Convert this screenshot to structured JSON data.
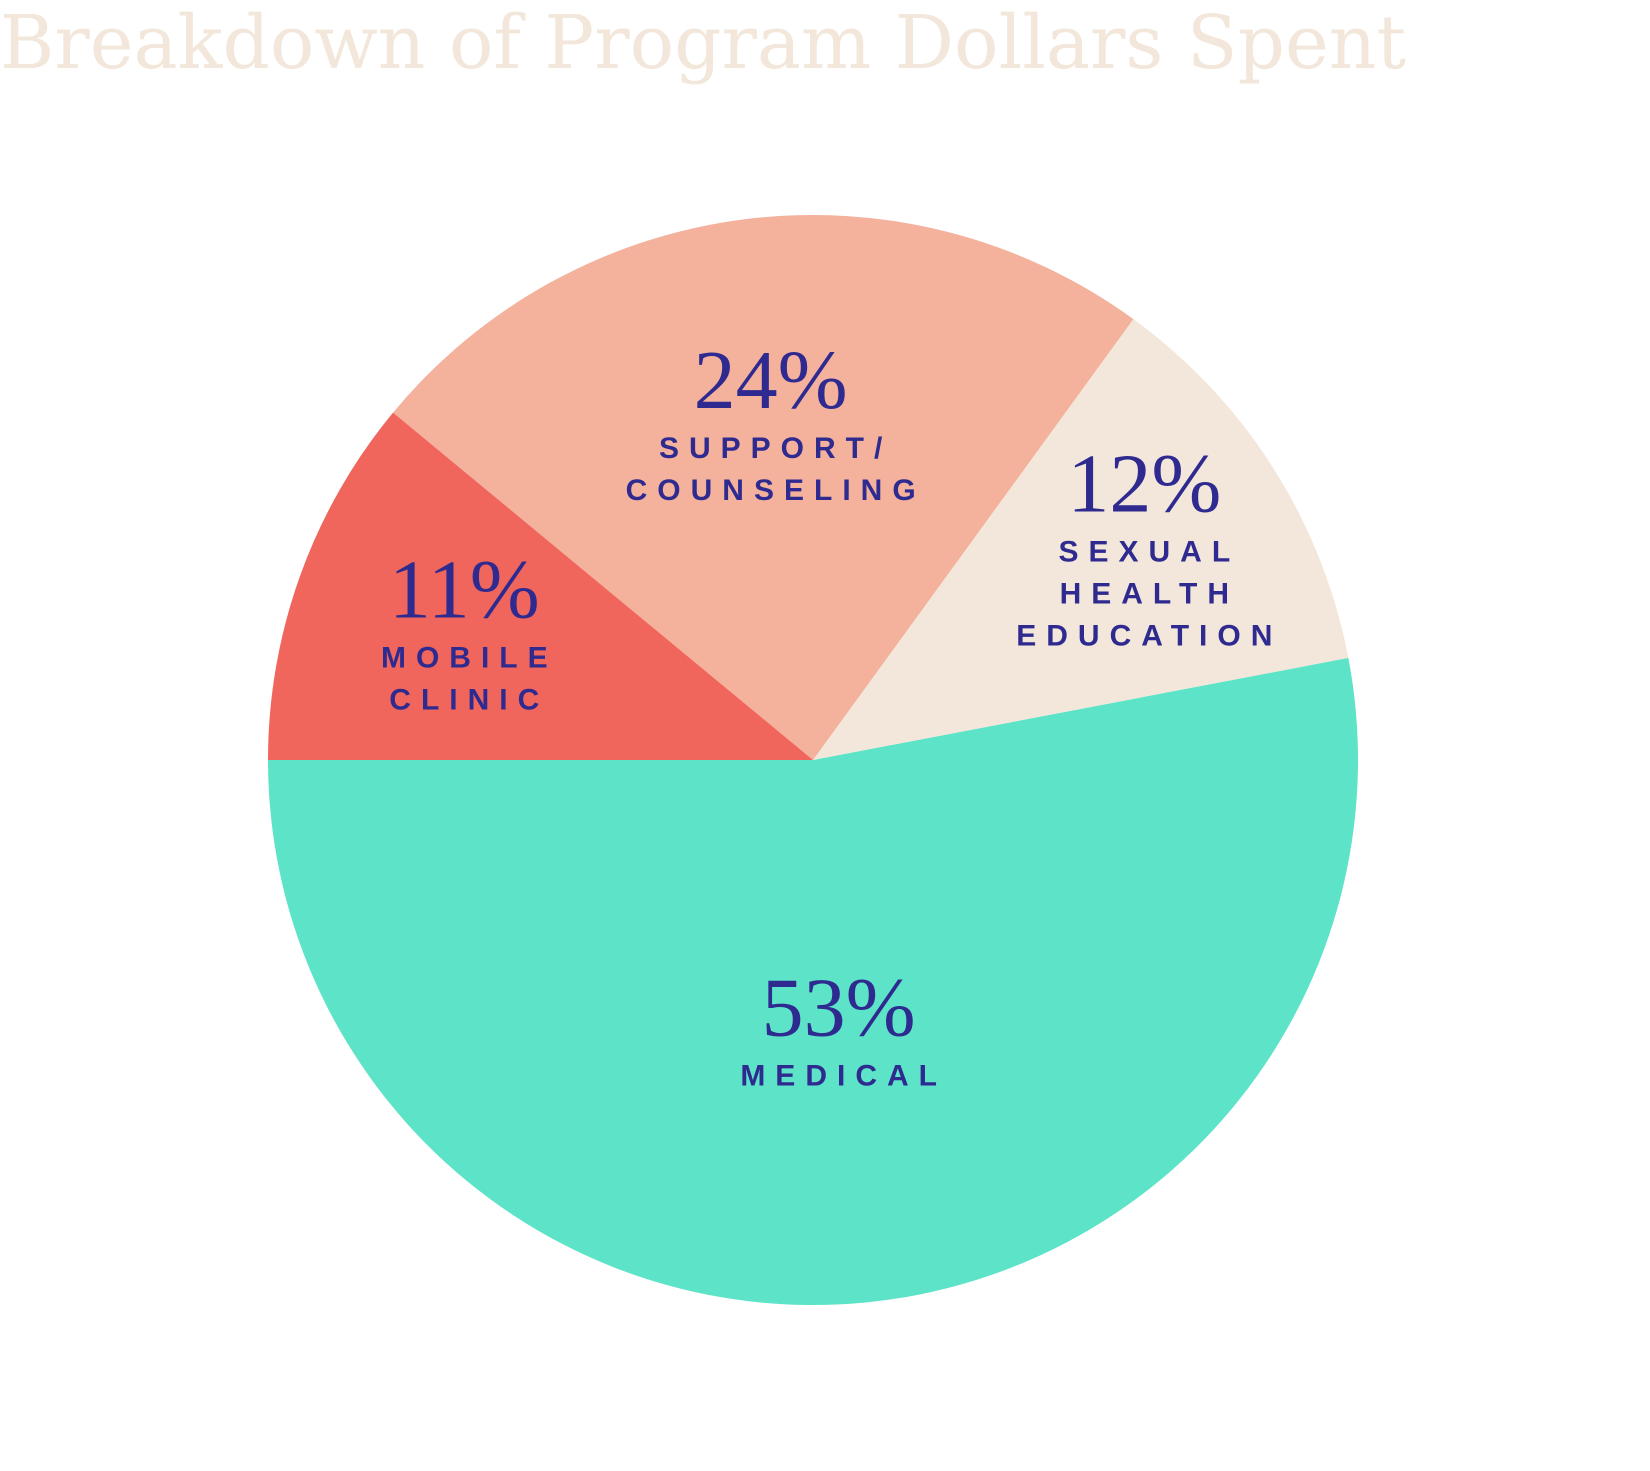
{
  "chart_data": {
    "type": "pie",
    "title": "Breakdown of Program Dollars Spent",
    "categories": [
      [
        "MEDICAL"
      ],
      [
        "SEXUAL",
        "HEALTH",
        "EDUCATION"
      ],
      [
        "SUPPORT/",
        "COUNSELING"
      ],
      [
        "MOBILE",
        "CLINIC"
      ]
    ],
    "values": [
      53,
      12,
      24,
      11
    ],
    "value_labels": [
      "53%",
      "12%",
      "24%",
      "11%"
    ],
    "colors": [
      "#5ce3c8",
      "#f2e7da",
      "#f4b19c",
      "#f0665c"
    ]
  }
}
